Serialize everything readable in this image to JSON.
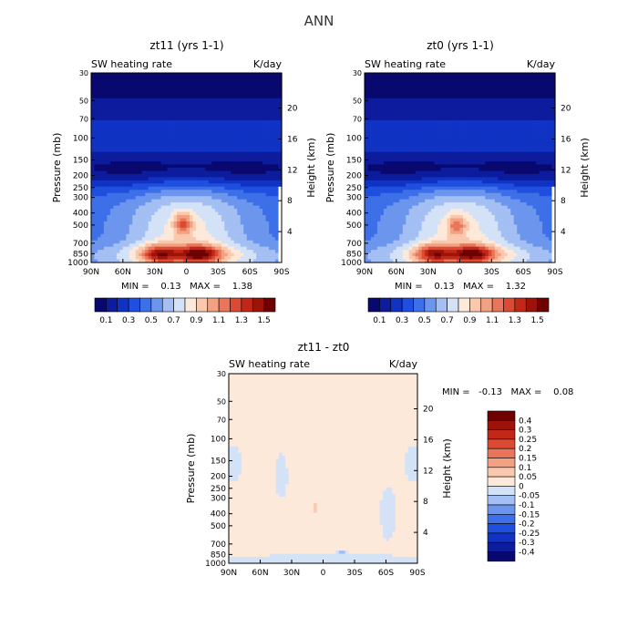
{
  "page_title": "ANN",
  "colors": {
    "top_scale": [
      "#08086e",
      "#0c1c9c",
      "#1133c4",
      "#1f4fde",
      "#3d6fe8",
      "#6c96ee",
      "#a3bff3",
      "#d4e2f8",
      "#fde9da",
      "#f9c8ad",
      "#f2a283",
      "#ea7559",
      "#dd4a33",
      "#c22818",
      "#9c1409",
      "#6e0000"
    ],
    "diff_scale": [
      "#08086e",
      "#0c1c9c",
      "#1133c4",
      "#1f4fde",
      "#3d6fe8",
      "#6c96ee",
      "#a3bff3",
      "#d4e2f8",
      "#fde9da",
      "#f9c8ad",
      "#f2a283",
      "#ea7559",
      "#dd4a33",
      "#c22818",
      "#9c1409",
      "#6e0000"
    ]
  },
  "chart_data": [
    {
      "type": "heatmap",
      "title": "zt11 (yrs 1-1)",
      "subtitle_left": "SW heating rate",
      "subtitle_right": "K/day",
      "xlabel": "",
      "ylabel": "Pressure (mb)",
      "y2label": "Height (km)",
      "xticks": [
        "90N",
        "60N",
        "30N",
        "0",
        "30S",
        "60S",
        "90S"
      ],
      "yticks": [
        30,
        50,
        70,
        100,
        150,
        200,
        250,
        300,
        400,
        500,
        700,
        850,
        1000
      ],
      "y2ticks": [
        20,
        16,
        12,
        8,
        4
      ],
      "ylim": [
        1000,
        30
      ],
      "xlim": [
        90,
        -90
      ],
      "min_text": "MIN =    0.13   MAX =    1.38",
      "field": {
        "background": 0.45,
        "gaussians": [
          {
            "lat": 0,
            "logp": 2.78,
            "slat": 38,
            "sp": 0.34,
            "amp": 0.4
          },
          {
            "lat": 3,
            "logp": 2.69,
            "slat": 6,
            "sp": 0.06,
            "amp": 0.42
          },
          {
            "lat": 25,
            "logp": 2.93,
            "slat": 12,
            "sp": 0.05,
            "amp": 0.52
          },
          {
            "lat": -13,
            "logp": 2.93,
            "slat": 13,
            "sp": 0.045,
            "amp": 0.6
          },
          {
            "lat": 0,
            "logp": 2.95,
            "slat": 70,
            "sp": 0.07,
            "amp": 0.28
          },
          {
            "lat": 0,
            "logp": 2.25,
            "slat": 120,
            "sp": 0.12,
            "amp": -0.45
          }
        ],
        "whiteout": {
          "lat": -88,
          "logp_from": 2.4
        }
      }
    },
    {
      "type": "heatmap",
      "title": "zt0 (yrs 1-1)",
      "subtitle_left": "SW heating rate",
      "subtitle_right": "K/day",
      "xlabel": "",
      "ylabel": "Pressure (mb)",
      "y2label": "Height (km)",
      "xticks": [
        "90N",
        "60N",
        "30N",
        "0",
        "30S",
        "60S",
        "90S"
      ],
      "yticks": [
        30,
        50,
        70,
        100,
        150,
        200,
        250,
        300,
        400,
        500,
        700,
        850,
        1000
      ],
      "y2ticks": [
        20,
        16,
        12,
        8,
        4
      ],
      "ylim": [
        1000,
        30
      ],
      "xlim": [
        90,
        -90
      ],
      "min_text": "MIN =    0.13   MAX =    1.32",
      "field": {
        "background": 0.45,
        "gaussians": [
          {
            "lat": 0,
            "logp": 2.78,
            "slat": 38,
            "sp": 0.34,
            "amp": 0.4
          },
          {
            "lat": 3,
            "logp": 2.7,
            "slat": 6,
            "sp": 0.06,
            "amp": 0.36
          },
          {
            "lat": 25,
            "logp": 2.93,
            "slat": 12,
            "sp": 0.05,
            "amp": 0.5
          },
          {
            "lat": -13,
            "logp": 2.93,
            "slat": 13,
            "sp": 0.045,
            "amp": 0.58
          },
          {
            "lat": 0,
            "logp": 2.95,
            "slat": 70,
            "sp": 0.07,
            "amp": 0.28
          },
          {
            "lat": 0,
            "logp": 2.25,
            "slat": 120,
            "sp": 0.12,
            "amp": -0.45
          }
        ],
        "whiteout": {
          "lat": -88,
          "logp_from": 2.4
        }
      }
    },
    {
      "type": "heatmap",
      "title": "zt11 - zt0",
      "subtitle_left": "SW heating rate",
      "subtitle_right": "K/day",
      "xlabel": "",
      "ylabel": "Pressure (mb)",
      "y2label": "Height (km)",
      "xticks": [
        "90N",
        "60N",
        "30N",
        "0",
        "30S",
        "60S",
        "90S"
      ],
      "yticks": [
        30,
        50,
        70,
        100,
        150,
        200,
        250,
        300,
        400,
        500,
        700,
        850,
        1000
      ],
      "y2ticks": [
        20,
        16,
        12,
        8,
        4
      ],
      "ylim": [
        1000,
        30
      ],
      "xlim": [
        90,
        -90
      ],
      "min_text": "MIN =   -0.13   MAX =    0.08",
      "field": {
        "background": 0.01,
        "gaussians": [
          {
            "lat": 8,
            "logp": 2.55,
            "slat": 3,
            "sp": 0.05,
            "amp": 0.05
          },
          {
            "lat": 0,
            "logp": 2.97,
            "slat": 80,
            "sp": 0.025,
            "amp": -0.03
          },
          {
            "lat": -18,
            "logp": 2.92,
            "slat": 3,
            "sp": 0.015,
            "amp": -0.08
          },
          {
            "lat": 40,
            "logp": 2.3,
            "slat": 4,
            "sp": 0.12,
            "amp": -0.03
          },
          {
            "lat": -62,
            "logp": 2.6,
            "slat": 5,
            "sp": 0.15,
            "amp": -0.03
          },
          {
            "lat": 85,
            "logp": 2.2,
            "slat": 5,
            "sp": 0.1,
            "amp": -0.03
          },
          {
            "lat": -85,
            "logp": 2.2,
            "slat": 5,
            "sp": 0.1,
            "amp": -0.03
          }
        ]
      }
    }
  ],
  "colorbar_top": {
    "labels": [
      "0.1",
      "0.3",
      "0.5",
      "0.7",
      "0.9",
      "1.1",
      "1.3",
      "1.5"
    ]
  },
  "colorbar_diff": {
    "labels": [
      "0.4",
      "0.3",
      "0.25",
      "0.2",
      "0.15",
      "0.1",
      "0.05",
      "0",
      "-0.05",
      "-0.1",
      "-0.15",
      "-0.2",
      "-0.25",
      "-0.3",
      "-0.4"
    ]
  }
}
